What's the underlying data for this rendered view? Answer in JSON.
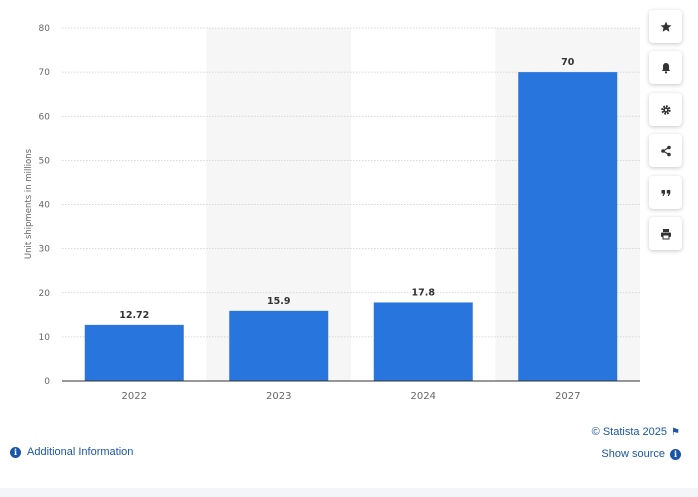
{
  "chart_data": {
    "type": "bar",
    "categories": [
      "2022",
      "2023",
      "2024",
      "2027"
    ],
    "values": [
      12.72,
      15.9,
      17.8,
      70
    ],
    "value_labels": [
      "12.72",
      "15.9",
      "17.8",
      "70"
    ],
    "ylabel": "Unit shipments in millions",
    "xlabel": "",
    "ylim": [
      0,
      80
    ],
    "yticks": [
      0,
      10,
      20,
      30,
      40,
      50,
      60,
      70,
      80
    ],
    "grid": true,
    "bar_color": "#2876dd"
  },
  "toolbar": {
    "buttons": [
      {
        "name": "favorite-button",
        "icon": "star-icon"
      },
      {
        "name": "notification-button",
        "icon": "bell-icon"
      },
      {
        "name": "settings-button",
        "icon": "gear-icon"
      },
      {
        "name": "share-button",
        "icon": "share-icon"
      },
      {
        "name": "cite-button",
        "icon": "quote-icon"
      },
      {
        "name": "print-button",
        "icon": "printer-icon"
      }
    ]
  },
  "footer": {
    "credit": "© Statista 2025",
    "show_source": "Show source",
    "additional_info": "Additional Information"
  },
  "colors": {
    "accent": "#1a56a8",
    "bar": "#2876dd",
    "band": "#f6f6f6"
  }
}
